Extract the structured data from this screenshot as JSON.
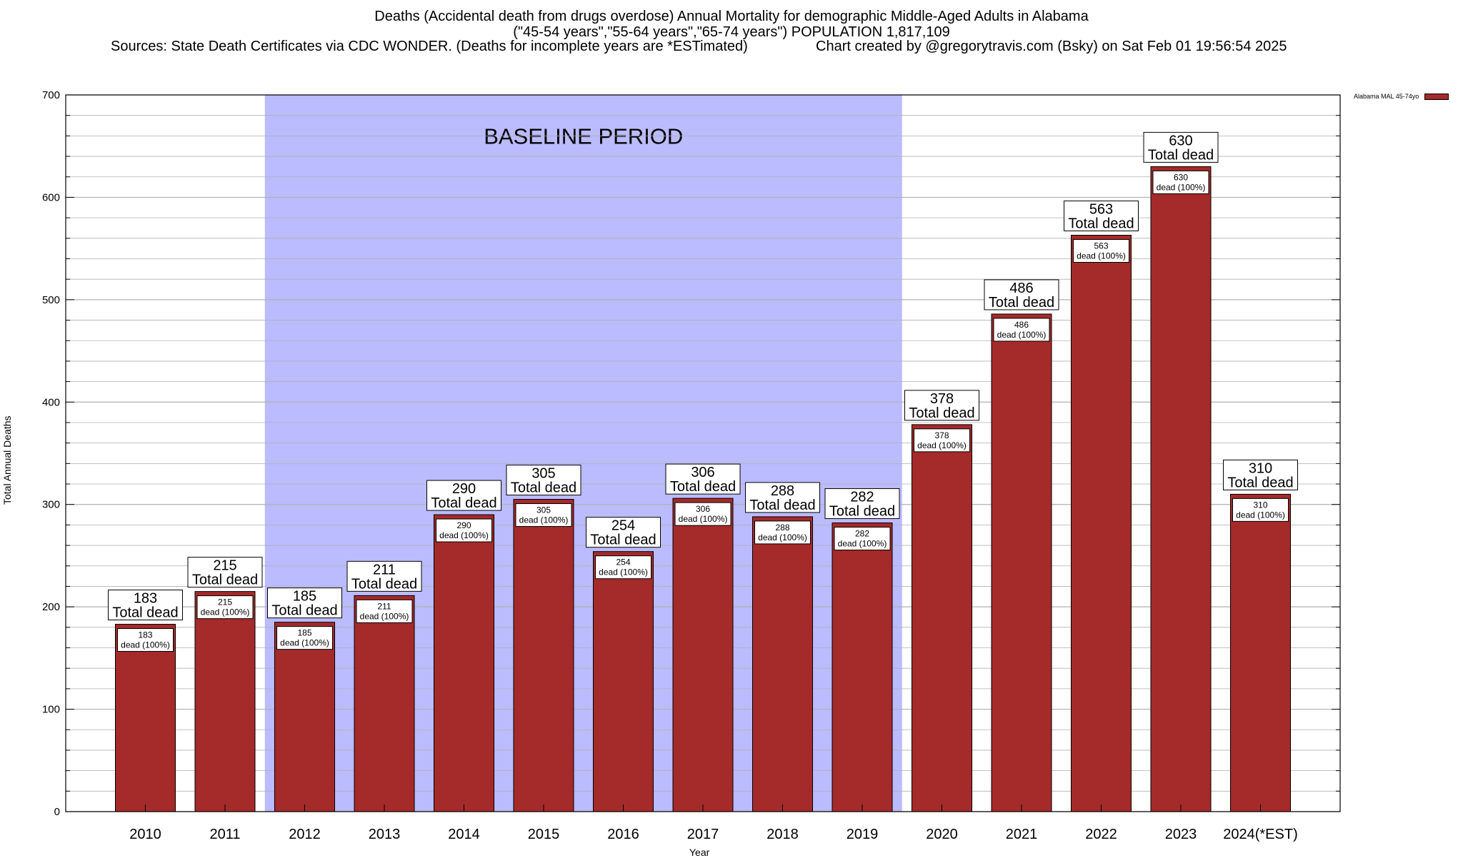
{
  "title": {
    "line1": "Deaths (Accidental death from drugs overdose) Annual Mortality for demographic Middle-Aged Adults in Alabama",
    "line2": "(\"45-54 years\",\"55-64 years\",\"65-74 years\") POPULATION 1,817,109",
    "sources": "Sources: State Death Certificates via CDC WONDER. (Deaths for incomplete years are *ESTimated)",
    "credit": "Chart created by @gregorytravis.com (Bsky) on Sat Feb 01 19:56:54 2025"
  },
  "chart_data": {
    "type": "bar",
    "categories": [
      "2010",
      "2011",
      "2012",
      "2013",
      "2014",
      "2015",
      "2016",
      "2017",
      "2018",
      "2019",
      "2020",
      "2021",
      "2022",
      "2023",
      "2024(*EST)"
    ],
    "series": [
      {
        "name": "Alabama MAL 45-74yo",
        "values": [
          183,
          215,
          185,
          211,
          290,
          305,
          254,
          306,
          288,
          282,
          378,
          486,
          563,
          630,
          310
        ]
      }
    ],
    "outer_label_suffix": "Total dead",
    "inner_label_suffix": "dead (100%)",
    "xlabel": "Year",
    "ylabel": "Total Annual Deaths",
    "ylim": [
      0,
      700
    ],
    "yticks": [
      0,
      100,
      200,
      300,
      400,
      500,
      600,
      700
    ],
    "minor_step": 20,
    "grid": true,
    "legend": "top-right",
    "baseline": {
      "label": "BASELINE PERIOD",
      "from": "2012",
      "to": "2019"
    },
    "colors": {
      "bar": "#a52a2a",
      "baseline": "#bbbbff",
      "grid": "#b0b0b0"
    }
  }
}
